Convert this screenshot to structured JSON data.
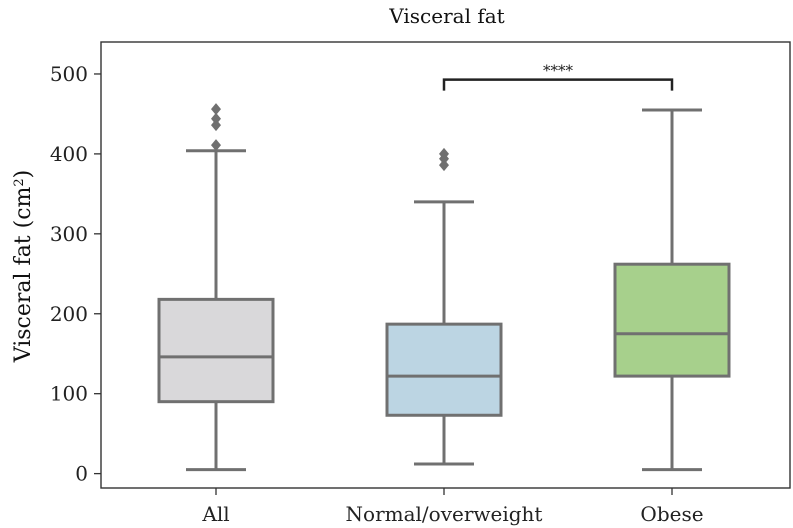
{
  "chart_data": {
    "type": "box",
    "title": "Visceral fat",
    "ylabel": {
      "main": "Visceral fat (cm",
      "sup": "2",
      "close": ")"
    },
    "xlabel": "",
    "ylim": [
      -18,
      540
    ],
    "yticks": [
      "0",
      "100",
      "200",
      "300",
      "400",
      "500"
    ],
    "categories": [
      "All",
      "Normal/overweight",
      "Obese"
    ],
    "boxes": [
      {
        "name": "All",
        "color": "#d9d8da",
        "whisker_low": 5,
        "q1": 90,
        "median": 146,
        "q3": 218,
        "whisker_high": 404,
        "outliers": [
          411,
          436,
          444,
          456
        ]
      },
      {
        "name": "Normal/overweight",
        "color": "#bcd5e3",
        "whisker_low": 12,
        "q1": 73,
        "median": 122,
        "q3": 187,
        "whisker_high": 340,
        "outliers": [
          386,
          394,
          400
        ]
      },
      {
        "name": "Obese",
        "color": "#a7d08c",
        "whisker_low": 5,
        "q1": 122,
        "median": 175,
        "q3": 262,
        "whisker_high": 455,
        "outliers": []
      }
    ],
    "annotation": {
      "from": "Normal/overweight",
      "to": "Obese",
      "value": 493,
      "label": "****"
    },
    "colors": {
      "line": "#707070",
      "frame": "#333333",
      "bracket": "#222222"
    }
  }
}
